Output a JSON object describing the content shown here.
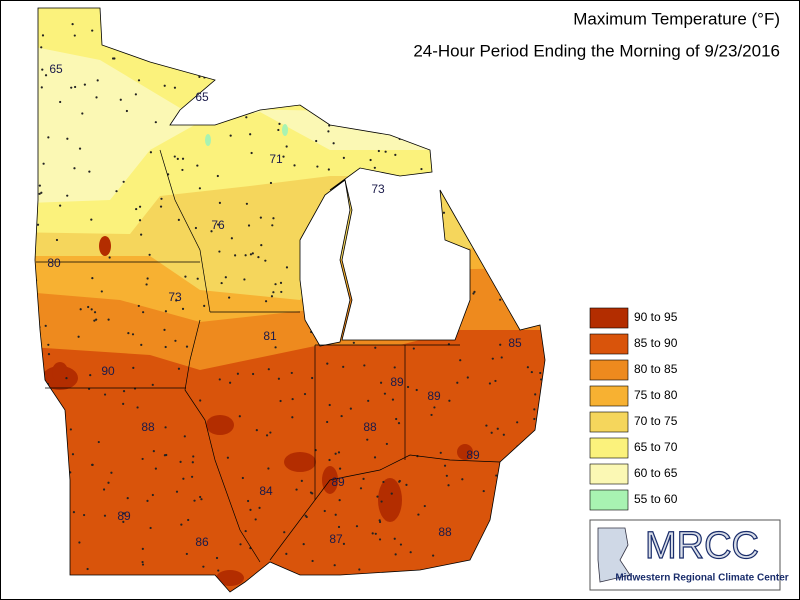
{
  "title": "Maximum Temperature (°F)",
  "subtitle": "24-Hour Period Ending the Morning of 9/23/2016",
  "legend": [
    {
      "label": "90 to 95",
      "color": "#b32d00"
    },
    {
      "label": "85 to 90",
      "color": "#d9540b"
    },
    {
      "label": "80 to 85",
      "color": "#ee8a1e"
    },
    {
      "label": "75 to 80",
      "color": "#f7b132"
    },
    {
      "label": "70 to 75",
      "color": "#f5d65c"
    },
    {
      "label": "65 to 70",
      "color": "#fbf27c"
    },
    {
      "label": "60 to 65",
      "color": "#fbf8b4"
    },
    {
      "label": "55 to 60",
      "color": "#a8f3b2"
    }
  ],
  "map_labels": [
    "65",
    "65",
    "71",
    "73",
    "76",
    "80",
    "73",
    "81",
    "85",
    "90",
    "89",
    "89",
    "88",
    "88",
    "89",
    "89",
    "84",
    "89",
    "86",
    "87",
    "88"
  ],
  "logo": {
    "name": "MRCC",
    "tagline": "Midwestern Regional Climate Center"
  }
}
